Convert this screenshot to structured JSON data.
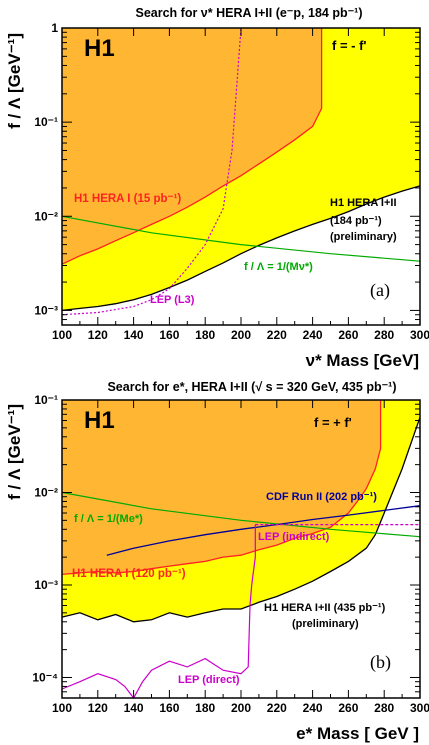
{
  "chart_data": [
    {
      "type": "area",
      "title": "Search for ν* HERA I+II (e⁻p, 184 pb⁻¹)",
      "xlabel": "ν* Mass [GeV]",
      "ylabel": "f / Λ [GeV⁻¹]",
      "y_log": true,
      "xlim": [
        100,
        300
      ],
      "ylim": [
        0.0007,
        1
      ],
      "xticks": [
        "100",
        "120",
        "140",
        "160",
        "180",
        "200",
        "220",
        "240",
        "260",
        "280",
        "300"
      ],
      "yticks": [
        {
          "v": 1,
          "label": "1"
        },
        {
          "v": 0.1,
          "label": "10⁻¹"
        },
        {
          "v": 0.01,
          "label": "10⁻²"
        },
        {
          "v": 0.001,
          "label": "10⁻³"
        }
      ],
      "experiment": "H1",
      "coupling": "f = - f'",
      "panel": "(a)",
      "labels": {
        "hera1": "H1 HERA I (15 pb⁻¹)",
        "hera12_1": "H1 HERA I+II",
        "hera12_2": "(184 pb⁻¹)",
        "hera12_3": "(preliminary)",
        "scale": "f / Λ = 1/(Mν*)",
        "lep": "LEP (L3)"
      },
      "colors": {
        "hera12_fill": "#ffff00",
        "hera1_fill": "#ffb733",
        "hera1_line": "#ff2222",
        "scale": "#00aa00",
        "lep": "#cc00cc",
        "hera12_line": "#000000"
      },
      "series": [
        {
          "name": "H1 HERA I+II",
          "x": [
            100,
            110,
            120,
            130,
            140,
            150,
            160,
            170,
            180,
            190,
            200,
            210,
            220,
            230,
            240,
            250,
            260,
            270,
            280,
            290,
            300
          ],
          "y": [
            0.001,
            0.00105,
            0.0011,
            0.00118,
            0.0013,
            0.00148,
            0.00175,
            0.0021,
            0.0026,
            0.0032,
            0.004,
            0.0049,
            0.0059,
            0.007,
            0.0082,
            0.0095,
            0.0112,
            0.0135,
            0.016,
            0.0185,
            0.021
          ]
        },
        {
          "name": "H1 HERA I",
          "x": [
            100,
            110,
            120,
            130,
            140,
            150,
            160,
            170,
            180,
            190,
            200,
            210,
            220,
            230,
            240,
            245,
            245
          ],
          "y": [
            0.0031,
            0.0038,
            0.0045,
            0.0055,
            0.0067,
            0.0082,
            0.01,
            0.0125,
            0.016,
            0.021,
            0.027,
            0.036,
            0.048,
            0.065,
            0.09,
            0.14,
            1
          ]
        },
        {
          "name": "f / Λ = 1/(Mν*)",
          "x": [
            100,
            150,
            200,
            250,
            300
          ],
          "y": [
            0.01,
            0.00667,
            0.005,
            0.004,
            0.00333
          ]
        },
        {
          "name": "LEP (L3)",
          "x": [
            100,
            120,
            140,
            150,
            160,
            170,
            180,
            190,
            195,
            200
          ],
          "y": [
            0.0009,
            0.00095,
            0.0011,
            0.0013,
            0.0017,
            0.0028,
            0.005,
            0.012,
            0.05,
            1
          ]
        }
      ]
    },
    {
      "type": "area",
      "title": "Search for e*, HERA I+II (√ s = 320 GeV, 435 pb⁻¹)",
      "xlabel": "e* Mass [ GeV ]",
      "ylabel": "f / Λ [GeV⁻¹]",
      "y_log": true,
      "xlim": [
        100,
        300
      ],
      "ylim": [
        6e-05,
        0.1
      ],
      "xticks": [
        "100",
        "120",
        "140",
        "160",
        "180",
        "200",
        "220",
        "240",
        "260",
        "280",
        "300"
      ],
      "yticks": [
        {
          "v": 0.1,
          "label": "10⁻¹"
        },
        {
          "v": 0.01,
          "label": "10⁻²"
        },
        {
          "v": 0.001,
          "label": "10⁻³"
        },
        {
          "v": 0.0001,
          "label": "10⁻⁴"
        }
      ],
      "experiment": "H1",
      "coupling": "f = + f'",
      "panel": "(b)",
      "labels": {
        "cdf": "CDF Run II (202 pb⁻¹)",
        "scale": "f / Λ = 1/(Me*)",
        "lep_ind": "LEP (indirect)",
        "hera1": "H1 HERA I (120 pb⁻¹)",
        "hera12_1": "H1 HERA I+II (435 pb⁻¹)",
        "hera12_2": "(preliminary)",
        "lep_dir": "LEP (direct)"
      },
      "colors": {
        "hera12_fill": "#ffff00",
        "hera1_fill": "#ffb733",
        "hera1_line": "#ff2222",
        "scale": "#00aa00",
        "lep": "#cc00cc",
        "cdf": "#000099",
        "hera12_line": "#000000"
      },
      "series": [
        {
          "name": "H1 HERA I+II",
          "x": [
            100,
            110,
            120,
            130,
            140,
            150,
            160,
            170,
            180,
            190,
            200,
            210,
            220,
            230,
            240,
            250,
            260,
            270,
            275,
            280,
            290,
            300
          ],
          "y": [
            0.00045,
            0.0005,
            0.00042,
            0.00048,
            0.0004,
            0.00042,
            0.0005,
            0.00045,
            0.0005,
            0.00055,
            0.00055,
            0.00065,
            0.00075,
            0.0009,
            0.0011,
            0.0014,
            0.0018,
            0.0025,
            0.0035,
            0.006,
            0.018,
            0.065
          ]
        },
        {
          "name": "H1 HERA I",
          "x": [
            100,
            110,
            120,
            130,
            140,
            150,
            160,
            170,
            180,
            190,
            200,
            210,
            220,
            230,
            240,
            250,
            260,
            265,
            270,
            275,
            278,
            278
          ],
          "y": [
            0.0013,
            0.00135,
            0.0014,
            0.00135,
            0.0014,
            0.0015,
            0.0016,
            0.0017,
            0.0018,
            0.002,
            0.0021,
            0.0024,
            0.0027,
            0.0032,
            0.0036,
            0.0042,
            0.006,
            0.008,
            0.011,
            0.018,
            0.03,
            0.1
          ]
        },
        {
          "name": "f / Λ = 1/(Me*)",
          "x": [
            100,
            150,
            200,
            250,
            300
          ],
          "y": [
            0.01,
            0.00667,
            0.005,
            0.004,
            0.00333
          ]
        },
        {
          "name": "CDF Run II (202 pb⁻¹)",
          "x": [
            125,
            140,
            160,
            180,
            200,
            220,
            240,
            260,
            280,
            300
          ],
          "y": [
            0.0021,
            0.0025,
            0.003,
            0.0035,
            0.004,
            0.0045,
            0.0051,
            0.0057,
            0.0064,
            0.0072
          ]
        },
        {
          "name": "LEP (direct)",
          "x": [
            100,
            110,
            120,
            130,
            135,
            140,
            145,
            150,
            160,
            170,
            180,
            190,
            200,
            204,
            205,
            206,
            208,
            208
          ],
          "y": [
            7.5e-05,
            9e-05,
            0.00011,
            9.5e-05,
            8e-05,
            5.5e-05,
            9e-05,
            0.00012,
            0.00015,
            0.00013,
            0.00016,
            0.00012,
            0.00011,
            0.00013,
            0.0006,
            0.001,
            0.002,
            0.0045
          ]
        },
        {
          "name": "LEP (indirect)",
          "x": [
            208,
            220,
            240,
            260,
            280,
            300
          ],
          "y": [
            0.0045,
            0.0045,
            0.0045,
            0.0045,
            0.0045,
            0.0045
          ]
        }
      ]
    }
  ]
}
